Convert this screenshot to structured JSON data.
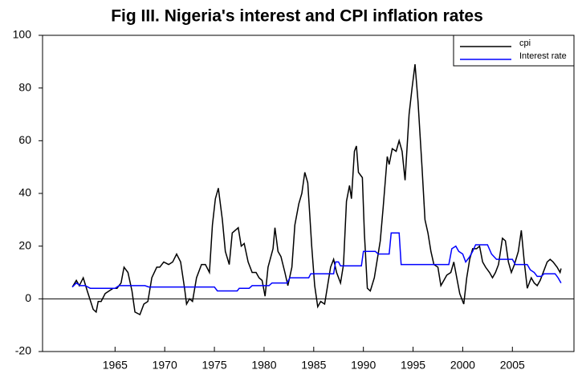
{
  "chart_data": {
    "type": "line",
    "title": "Fig III. Nigeria's interest and CPI inflation rates",
    "xlim": [
      1957.7,
      2011.2
    ],
    "xticks": [
      1965,
      1970,
      1975,
      1980,
      1985,
      1990,
      1995,
      2000,
      2005
    ],
    "ylim": [
      -20,
      100
    ],
    "yticks": [
      -20,
      0,
      20,
      40,
      60,
      80,
      100
    ],
    "legend": "top-right",
    "series": [
      {
        "name": "cpi",
        "color": "#000000",
        "x": [
          1960.7,
          1961.1,
          1961.4,
          1961.8,
          1962.2,
          1962.8,
          1963.1,
          1963.3,
          1963.6,
          1964.0,
          1964.4,
          1964.8,
          1965.2,
          1965.6,
          1965.9,
          1966.3,
          1966.7,
          1967.0,
          1967.5,
          1967.9,
          1968.3,
          1968.7,
          1969.2,
          1969.5,
          1969.9,
          1970.4,
          1970.8,
          1971.2,
          1971.6,
          1972.0,
          1972.2,
          1972.5,
          1972.8,
          1973.2,
          1973.7,
          1974.1,
          1974.5,
          1974.8,
          1975.1,
          1975.4,
          1975.8,
          1976.1,
          1976.5,
          1976.8,
          1977.4,
          1977.7,
          1978.0,
          1978.4,
          1978.8,
          1979.2,
          1979.5,
          1979.8,
          1980.1,
          1980.4,
          1980.9,
          1981.1,
          1981.4,
          1981.7,
          1982.1,
          1982.4,
          1982.8,
          1983.1,
          1983.5,
          1983.8,
          1984.1,
          1984.4,
          1984.8,
          1985.1,
          1985.4,
          1985.7,
          1986.1,
          1986.4,
          1986.7,
          1987.0,
          1987.3,
          1987.7,
          1988.0,
          1988.3,
          1988.6,
          1988.8,
          1989.1,
          1989.3,
          1989.5,
          1989.9,
          1990.1,
          1990.4,
          1990.7,
          1991.1,
          1991.4,
          1991.7,
          1992.0,
          1992.4,
          1992.6,
          1992.9,
          1993.3,
          1993.6,
          1993.9,
          1994.2,
          1994.6,
          1994.9,
          1995.2,
          1995.5,
          1995.9,
          1996.2,
          1996.5,
          1996.8,
          1997.1,
          1997.5,
          1997.8,
          1998.1,
          1998.4,
          1998.8,
          1999.1,
          1999.4,
          1999.7,
          2000.1,
          2000.4,
          2000.7,
          2001.0,
          2001.4,
          2001.7,
          2002.0,
          2002.3,
          2002.7,
          2003.0,
          2003.3,
          2003.6,
          2004.0,
          2004.3,
          2004.6,
          2004.9,
          2005.2,
          2005.6,
          2005.9,
          2006.2,
          2006.5,
          2006.9,
          2007.2,
          2007.5,
          2007.8,
          2008.2,
          2008.5,
          2008.8,
          2009.1,
          2009.5,
          2009.8,
          2009.9
        ],
        "values": [
          4.5,
          7,
          5,
          8,
          3,
          -4,
          -5,
          -1,
          -1,
          2,
          3,
          4,
          4,
          6,
          12,
          10,
          3,
          -5,
          -6,
          -2,
          -1,
          8,
          12,
          12,
          14,
          13,
          14,
          17,
          14,
          4,
          -2,
          0,
          -1,
          8,
          13,
          13,
          10,
          28,
          38,
          42,
          30,
          18,
          13,
          25,
          27,
          20,
          21,
          14,
          10,
          10,
          8,
          7,
          1,
          12,
          19,
          27,
          18,
          16,
          10,
          5,
          12,
          28,
          36,
          40,
          48,
          44,
          20,
          5,
          -3,
          -1,
          -2,
          5,
          12,
          15,
          10,
          6,
          13,
          37,
          43,
          38,
          56,
          58,
          48,
          46,
          25,
          4,
          3,
          8,
          15,
          22,
          35,
          54,
          51,
          57,
          56,
          60,
          56,
          45,
          70,
          80,
          89,
          75,
          50,
          30,
          25,
          18,
          13,
          12,
          5,
          7,
          9,
          10,
          14,
          8,
          2,
          -2,
          8,
          15,
          19,
          19,
          20,
          14,
          12,
          10,
          8,
          10,
          13,
          23,
          22,
          14,
          10,
          13,
          18,
          26,
          14,
          4,
          8,
          6,
          5,
          7,
          11,
          14,
          15,
          14,
          12,
          10,
          11.5
        ]
      },
      {
        "name": "Interest rate",
        "color": "#0000ff",
        "x": [
          1960.7,
          1961.1,
          1961.5,
          1962.0,
          1962.5,
          1965.0,
          1965.4,
          1968.0,
          1968.4,
          1975.0,
          1975.3,
          1977.3,
          1977.5,
          1978.5,
          1978.8,
          1980.5,
          1980.8,
          1982.3,
          1982.6,
          1984.5,
          1984.7,
          1987.0,
          1987.2,
          1987.5,
          1987.7,
          1989.8,
          1990.0,
          1991.2,
          1991.5,
          1992.6,
          1992.8,
          1993.6,
          1993.8,
          1998.6,
          1998.9,
          1999.3,
          1999.6,
          2000.0,
          2000.3,
          2000.7,
          2001.0,
          2001.3,
          2002.5,
          2002.9,
          2003.4,
          2005.0,
          2005.3,
          2006.5,
          2006.8,
          2007.2,
          2007.5,
          2007.9,
          2008.2,
          2009.3,
          2009.6,
          2009.9
        ],
        "values": [
          4.5,
          6,
          5,
          5,
          4,
          4,
          5,
          5,
          4.5,
          4.5,
          3,
          3,
          4,
          4,
          5,
          5,
          6,
          6,
          8,
          8,
          9.5,
          9.5,
          14,
          14,
          12.5,
          12.5,
          18,
          18,
          17,
          17,
          25,
          25,
          13,
          13,
          19,
          20,
          18,
          17,
          14,
          16,
          18,
          20.5,
          20.5,
          17,
          15,
          15,
          13,
          13,
          11,
          10,
          8.5,
          8.5,
          9.5,
          9.5,
          8,
          6
        ]
      }
    ]
  }
}
